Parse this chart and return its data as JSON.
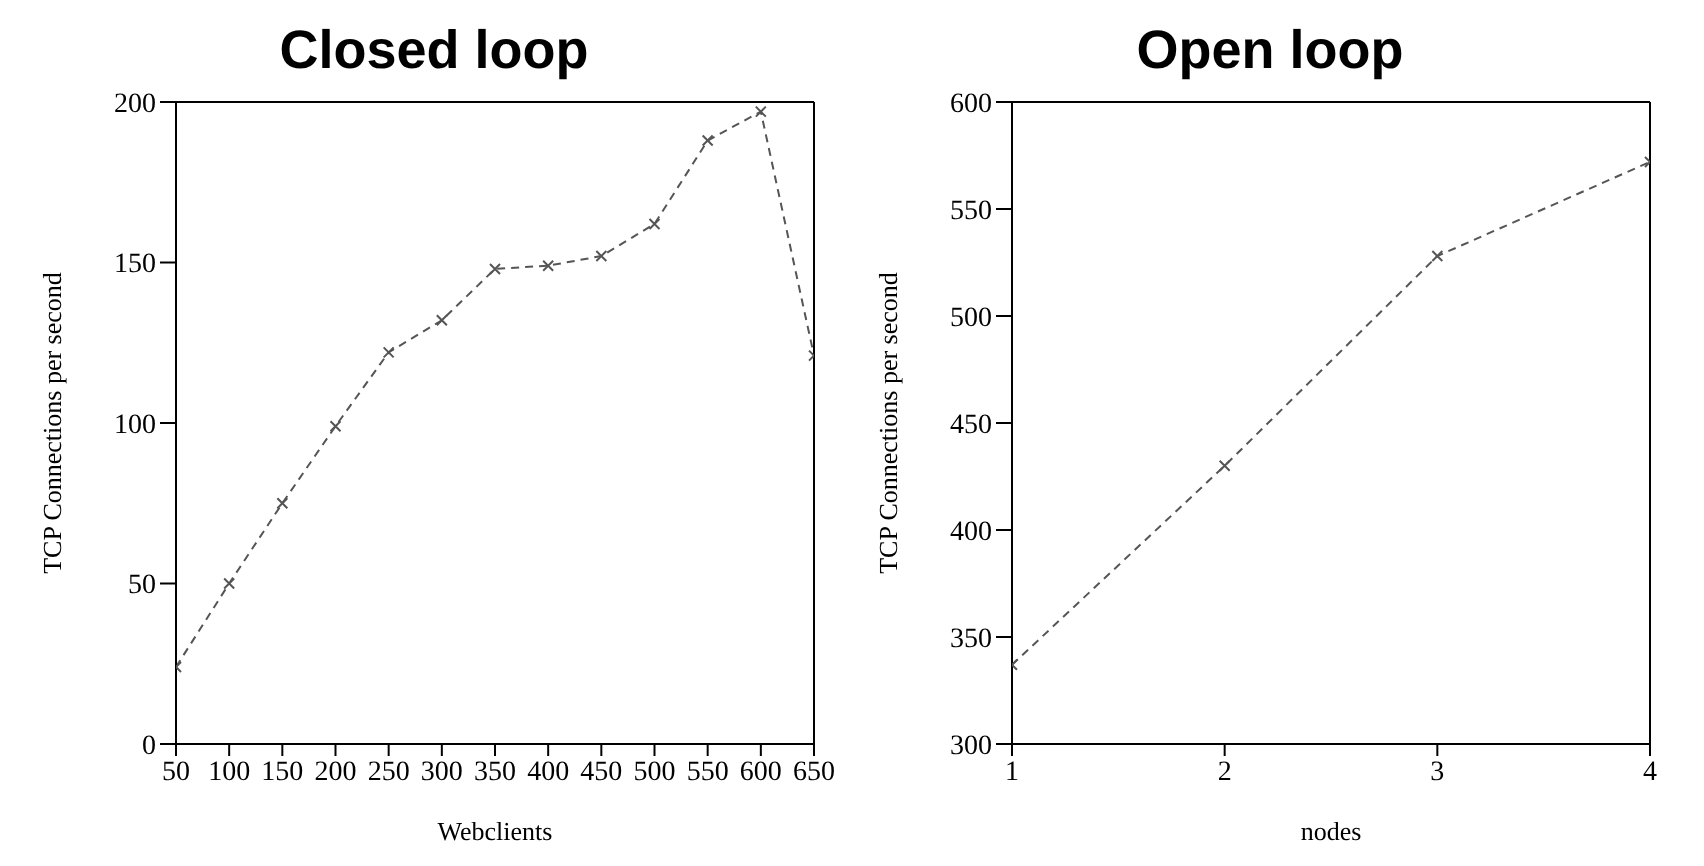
{
  "chart_data": [
    {
      "type": "line",
      "title": "Closed loop",
      "xlabel": "Webclients",
      "ylabel": "TCP Connections per second",
      "x": [
        50,
        100,
        150,
        200,
        250,
        300,
        350,
        400,
        450,
        500,
        550,
        600,
        650
      ],
      "series": [
        {
          "color": "#555555",
          "values": [
            24,
            50,
            75,
            99,
            122,
            132,
            148,
            149,
            152,
            162,
            188,
            197,
            121
          ]
        }
      ],
      "xlim": [
        50,
        650
      ],
      "xticks": [
        50,
        100,
        150,
        200,
        250,
        300,
        350,
        400,
        450,
        500,
        550,
        600,
        650
      ],
      "ylim": [
        0,
        200
      ],
      "yticks": [
        0,
        50,
        100,
        150,
        200
      ],
      "grid": false,
      "legend": false,
      "marker": "cross",
      "line_style": "dashed"
    },
    {
      "type": "line",
      "title": "Open loop",
      "xlabel": "nodes",
      "ylabel": "TCP Connections per second",
      "x": [
        1,
        2,
        3,
        4
      ],
      "series": [
        {
          "color": "#555555",
          "values": [
            337,
            430,
            528,
            572
          ]
        }
      ],
      "xlim": [
        1,
        4
      ],
      "xticks": [
        1,
        2,
        3,
        4
      ],
      "ylim": [
        300,
        600
      ],
      "yticks": [
        300,
        350,
        400,
        450,
        500,
        550,
        600
      ],
      "grid": false,
      "legend": false,
      "marker": "cross",
      "line_style": "dashed"
    }
  ]
}
